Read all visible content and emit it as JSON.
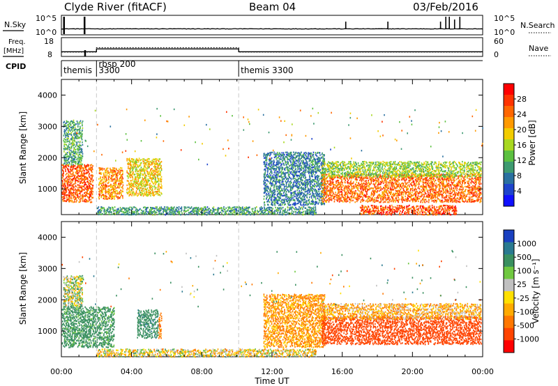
{
  "header": {
    "station": "Clyde River (fitACF)",
    "beam": "Beam 04",
    "date": "03/Feb/2016"
  },
  "sky_panel": {
    "left_label": "N.Sky",
    "right_label": "N.Search",
    "left_ticks": [
      "10^5",
      "10^0"
    ],
    "right_ticks": [
      "10^5",
      "10^0"
    ]
  },
  "freq_panel": {
    "left_label_1": "Freq.",
    "left_label_2": "[MHz]",
    "right_label": "Nave",
    "left_ticks": [
      "18",
      "8"
    ],
    "right_ticks": [
      "60",
      "0"
    ]
  },
  "cpid": {
    "label": "CPID",
    "segments": [
      {
        "text": "themis",
        "start_hour": 0.0
      },
      {
        "text": "3300",
        "start_hour": 2.0,
        "row": 2
      },
      {
        "text": "rbsp 200",
        "start_hour": 2.0,
        "row": 1
      },
      {
        "text": "themis 3300",
        "start_hour": 10.1
      }
    ]
  },
  "power_panel": {
    "ylabel": "Slant Range [km]",
    "cbar_label": "Power [dB]",
    "cbar_ticks": [
      "28",
      "24",
      "20",
      "16",
      "12",
      "8",
      "4"
    ],
    "cbar_colors": [
      "#ff0000",
      "#ff3300",
      "#ff6600",
      "#ff9900",
      "#f2cc00",
      "#a8d820",
      "#5cc040",
      "#3e9a70",
      "#2a70a0",
      "#1e44cc",
      "#1010ff"
    ]
  },
  "velocity_panel": {
    "ylabel": "Slant Range [km]",
    "cbar_label": "Velocity [m s⁻¹]",
    "cbar_ticks": [
      "1000",
      "500",
      "100",
      "25",
      "-25",
      "-100",
      "-500",
      "-1000"
    ],
    "cbar_colors": [
      "#1a40c0",
      "#2a7a90",
      "#3a9060",
      "#70c840",
      "#c0c0c0",
      "#ffe000",
      "#ffaa00",
      "#ff7700",
      "#ff4400",
      "#ff0000"
    ]
  },
  "axes": {
    "xlabel": "Time UT",
    "x_ticks": [
      "00:00",
      "04:00",
      "08:00",
      "12:00",
      "16:00",
      "20:00",
      "00:00"
    ],
    "y_ticks": [
      "1000",
      "2000",
      "3000",
      "4000"
    ]
  },
  "chart_data": [
    {
      "type": "line",
      "title": "N.Sky / N.Search",
      "x_range_hours": [
        0,
        24
      ],
      "yscale": "log",
      "ylim": [
        1,
        100000
      ],
      "series": [
        {
          "name": "N.Sky",
          "level": 30
        },
        {
          "name": "N.Search",
          "level": 1
        }
      ]
    },
    {
      "type": "line",
      "title": "Freq. / Nave",
      "x_range_hours": [
        0,
        24
      ],
      "ylim": [
        8,
        18
      ],
      "series": [
        {
          "name": "Freq",
          "x": [
            0,
            2,
            2,
            10.1,
            10.1,
            24
          ],
          "y": [
            10.5,
            10.5,
            12.0,
            12.0,
            10.5,
            10.5
          ]
        },
        {
          "name": "Nave",
          "x": [
            0,
            2,
            2,
            10.1,
            10.1,
            24
          ],
          "y": [
            14,
            14,
            28,
            28,
            14,
            14
          ]
        }
      ]
    },
    {
      "type": "heatmap",
      "title": "Power",
      "x_range_hours": [
        0,
        24
      ],
      "ylim": [
        180,
        4500
      ],
      "zlim": [
        0,
        30
      ],
      "regions": [
        {
          "t": [
            0.0,
            1.8
          ],
          "r": [
            600,
            1800
          ],
          "level": 25
        },
        {
          "t": [
            0.1,
            1.2
          ],
          "r": [
            1800,
            3200
          ],
          "level": 10
        },
        {
          "t": [
            2.1,
            3.5
          ],
          "r": [
            700,
            1700
          ],
          "level": 22
        },
        {
          "t": [
            3.7,
            5.7
          ],
          "r": [
            800,
            2000
          ],
          "level": 18
        },
        {
          "t": [
            2.0,
            14.5
          ],
          "r": [
            200,
            450
          ],
          "level": 9
        },
        {
          "t": [
            11.5,
            15.0
          ],
          "r": [
            500,
            2200
          ],
          "level": 7
        },
        {
          "t": [
            14.8,
            23.9
          ],
          "r": [
            600,
            1500
          ],
          "level": 24
        },
        {
          "t": [
            14.8,
            23.9
          ],
          "r": [
            1400,
            1900
          ],
          "level": 14
        },
        {
          "t": [
            17.0,
            22.5
          ],
          "r": [
            200,
            500
          ],
          "level": 26
        }
      ]
    },
    {
      "type": "heatmap",
      "title": "Velocity",
      "x_range_hours": [
        0,
        24
      ],
      "ylim": [
        180,
        4500
      ],
      "zlim": [
        -1000,
        1000
      ],
      "regions": [
        {
          "t": [
            0.0,
            3.0
          ],
          "r": [
            500,
            1800
          ],
          "level": 150
        },
        {
          "t": [
            0.1,
            1.2
          ],
          "r": [
            1800,
            2800
          ],
          "level": 10
        },
        {
          "t": [
            4.3,
            5.5
          ],
          "r": [
            800,
            1700
          ],
          "level": 200
        },
        {
          "t": [
            5.5,
            5.7
          ],
          "r": [
            800,
            1600
          ],
          "level": -200
        },
        {
          "t": [
            2.0,
            14.5
          ],
          "r": [
            200,
            450
          ],
          "level": -50
        },
        {
          "t": [
            11.5,
            15.0
          ],
          "r": [
            500,
            2200
          ],
          "level": -150
        },
        {
          "t": [
            14.8,
            23.9
          ],
          "r": [
            600,
            1500
          ],
          "level": -500
        },
        {
          "t": [
            14.8,
            23.9
          ],
          "r": [
            1400,
            1900
          ],
          "level": -100
        }
      ]
    }
  ]
}
